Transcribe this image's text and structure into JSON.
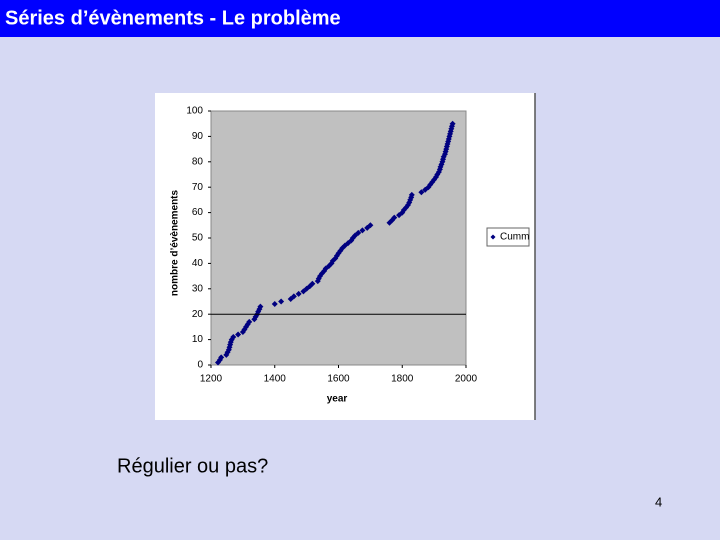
{
  "slide": {
    "title": "Séries d’évènements - Le problème",
    "caption": "Régulier ou pas?",
    "page_number": "4"
  },
  "chart_data": {
    "type": "scatter",
    "xlabel": "year",
    "ylabel": "nombre d’évènements",
    "xlim": [
      1200,
      2000
    ],
    "xticks": [
      1200,
      1400,
      1600,
      1800,
      2000
    ],
    "ylim": [
      0,
      100
    ],
    "yticks": [
      0,
      10,
      20,
      30,
      40,
      50,
      60,
      70,
      80,
      90,
      100
    ],
    "hline": 20,
    "series": [
      {
        "name": "Cumm",
        "color": "#000080",
        "x": [
          1222,
          1228,
          1232,
          1248,
          1252,
          1256,
          1258,
          1260,
          1262,
          1265,
          1270,
          1285,
          1300,
          1305,
          1310,
          1315,
          1320,
          1336,
          1340,
          1345,
          1348,
          1352,
          1355,
          1400,
          1420,
          1450,
          1460,
          1475,
          1490,
          1500,
          1510,
          1518,
          1535,
          1538,
          1542,
          1548,
          1555,
          1560,
          1570,
          1578,
          1582,
          1590,
          1595,
          1600,
          1606,
          1612,
          1620,
          1630,
          1640,
          1645,
          1652,
          1662,
          1675,
          1690,
          1700,
          1760,
          1768,
          1775,
          1790,
          1800,
          1805,
          1812,
          1818,
          1822,
          1825,
          1828,
          1830,
          1860,
          1872,
          1882,
          1888,
          1894,
          1900,
          1906,
          1910,
          1915,
          1918,
          1920,
          1923,
          1926,
          1928,
          1930,
          1934,
          1936,
          1938,
          1940,
          1942,
          1944,
          1946,
          1948,
          1950,
          1952,
          1954,
          1956,
          1958
        ],
        "values": [
          1,
          2,
          3,
          4,
          5,
          6,
          7,
          8,
          9,
          10,
          11,
          12,
          13,
          14,
          15,
          16,
          17,
          18,
          19,
          20,
          21,
          22,
          23,
          24,
          25,
          26,
          27,
          28,
          29,
          30,
          31,
          32,
          33,
          34,
          35,
          36,
          37,
          38,
          39,
          40,
          41,
          42,
          43,
          44,
          45,
          46,
          47,
          48,
          49,
          50,
          51,
          52,
          53,
          54,
          55,
          56,
          57,
          58,
          59,
          60,
          61,
          62,
          63,
          64,
          65,
          66,
          67,
          68,
          69,
          70,
          71,
          72,
          73,
          74,
          75,
          76,
          77,
          78,
          79,
          80,
          81,
          82,
          83,
          84,
          85,
          86,
          87,
          88,
          89,
          90,
          91,
          92,
          93,
          94,
          95
        ]
      }
    ],
    "legend": "right"
  }
}
